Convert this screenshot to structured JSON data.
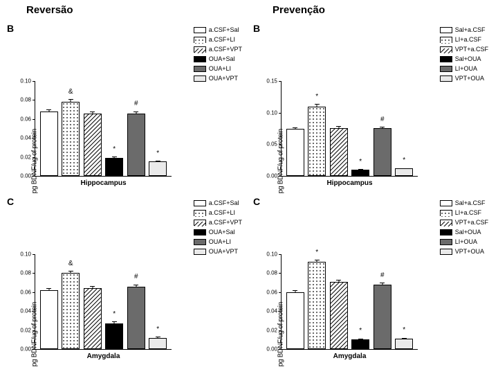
{
  "titles": {
    "left": "Reversão",
    "right": "Prevenção"
  },
  "y_axis_label": "pg BDNF/ug of protein",
  "legend_left": [
    "a.CSF+Sal",
    "a.CSF+LI",
    "a.CSF+VPT",
    "OUA+Sal",
    "OUA+LI",
    "OUA+VPT"
  ],
  "legend_right": [
    "Sal+a.CSF",
    "LI+a.CSF",
    "VPT+a.CSF",
    "Sal+OUA",
    "LI+OUA",
    "VPT+OUA"
  ],
  "fills": {
    "0": "#ffffff",
    "1": "dots",
    "2": "hatch",
    "3": "#000000",
    "4": "#6b6b6b",
    "5": "#eaeaea"
  },
  "panels": [
    {
      "col": "left",
      "letter": "B",
      "x_label": "Hippocampus",
      "y_max": 0.1,
      "y_ticks": [
        0.0,
        0.02,
        0.04,
        0.06,
        0.08,
        0.1
      ],
      "values": [
        0.068,
        0.078,
        0.066,
        0.019,
        0.066,
        0.015
      ],
      "errors": [
        0.003,
        0.004,
        0.003,
        0.002,
        0.003,
        0.002
      ],
      "annots": [
        "",
        "&",
        "",
        "*",
        "#",
        "*"
      ]
    },
    {
      "col": "left",
      "letter": "C",
      "x_label": "Amygdala",
      "y_max": 0.1,
      "y_ticks": [
        0.0,
        0.02,
        0.04,
        0.06,
        0.08,
        0.1
      ],
      "values": [
        0.062,
        0.08,
        0.064,
        0.027,
        0.066,
        0.012
      ],
      "errors": [
        0.003,
        0.003,
        0.003,
        0.003,
        0.003,
        0.002
      ],
      "annots": [
        "",
        "&",
        "",
        "*",
        "#",
        "*"
      ]
    },
    {
      "col": "right",
      "letter": "B",
      "x_label": "Hippocampus",
      "y_max": 0.15,
      "y_ticks": [
        0.0,
        0.05,
        0.1,
        0.15
      ],
      "values": [
        0.075,
        0.11,
        0.076,
        0.01,
        0.076,
        0.012
      ],
      "errors": [
        0.003,
        0.005,
        0.004,
        0.002,
        0.003,
        0.002
      ],
      "annots": [
        "",
        "*",
        "",
        "*",
        "#",
        "*"
      ]
    },
    {
      "col": "right",
      "letter": "C",
      "x_label": "Amygdala",
      "y_max": 0.1,
      "y_ticks": [
        0.0,
        0.02,
        0.04,
        0.06,
        0.08,
        0.1
      ],
      "values": [
        0.06,
        0.092,
        0.071,
        0.01,
        0.068,
        0.011
      ],
      "errors": [
        0.003,
        0.003,
        0.003,
        0.002,
        0.003,
        0.002
      ],
      "annots": [
        "",
        "*",
        "",
        "*",
        "#",
        "*"
      ]
    }
  ]
}
